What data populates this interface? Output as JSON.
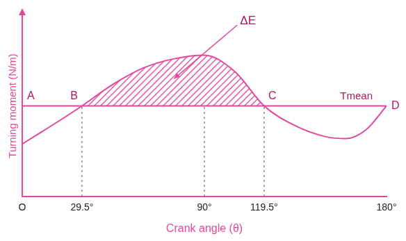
{
  "chart_data": {
    "type": "line",
    "x": [
      0,
      10,
      20,
      29.5,
      45,
      60,
      75,
      90,
      105,
      119.5,
      135,
      150,
      160,
      170,
      180
    ],
    "values": [
      2.9,
      3.6,
      4.3,
      5,
      6.2,
      7.1,
      7.6,
      7.8,
      6.9,
      5,
      3.9,
      3.3,
      3.2,
      3.7,
      5
    ],
    "color": "#e2489a",
    "xlabel": "Crank angle (θ)",
    "ylabel": "Turning moment (N/m)",
    "xlim": [
      0,
      180
    ],
    "ylim": [
      0,
      10
    ],
    "xticks": [
      {
        "value": 0,
        "label": "O"
      },
      {
        "value": 29.5,
        "label": "29.5°"
      },
      {
        "value": 90,
        "label": "90°"
      },
      {
        "value": 119.5,
        "label": "119.5°"
      },
      {
        "value": 180,
        "label": "180°"
      }
    ],
    "tick_labels": "x",
    "grid": false,
    "mean_line": {
      "label": "Tmean",
      "value": 5
    },
    "points": [
      {
        "label": "A",
        "x": 0,
        "y": 5
      },
      {
        "label": "B",
        "x": 29.5,
        "y": 5
      },
      {
        "label": "C",
        "x": 119.5,
        "y": 5
      },
      {
        "label": "D",
        "x": 180,
        "y": 5
      }
    ],
    "shaded": {
      "label": "ΔE",
      "x": 75,
      "y": 6.5
    }
  }
}
